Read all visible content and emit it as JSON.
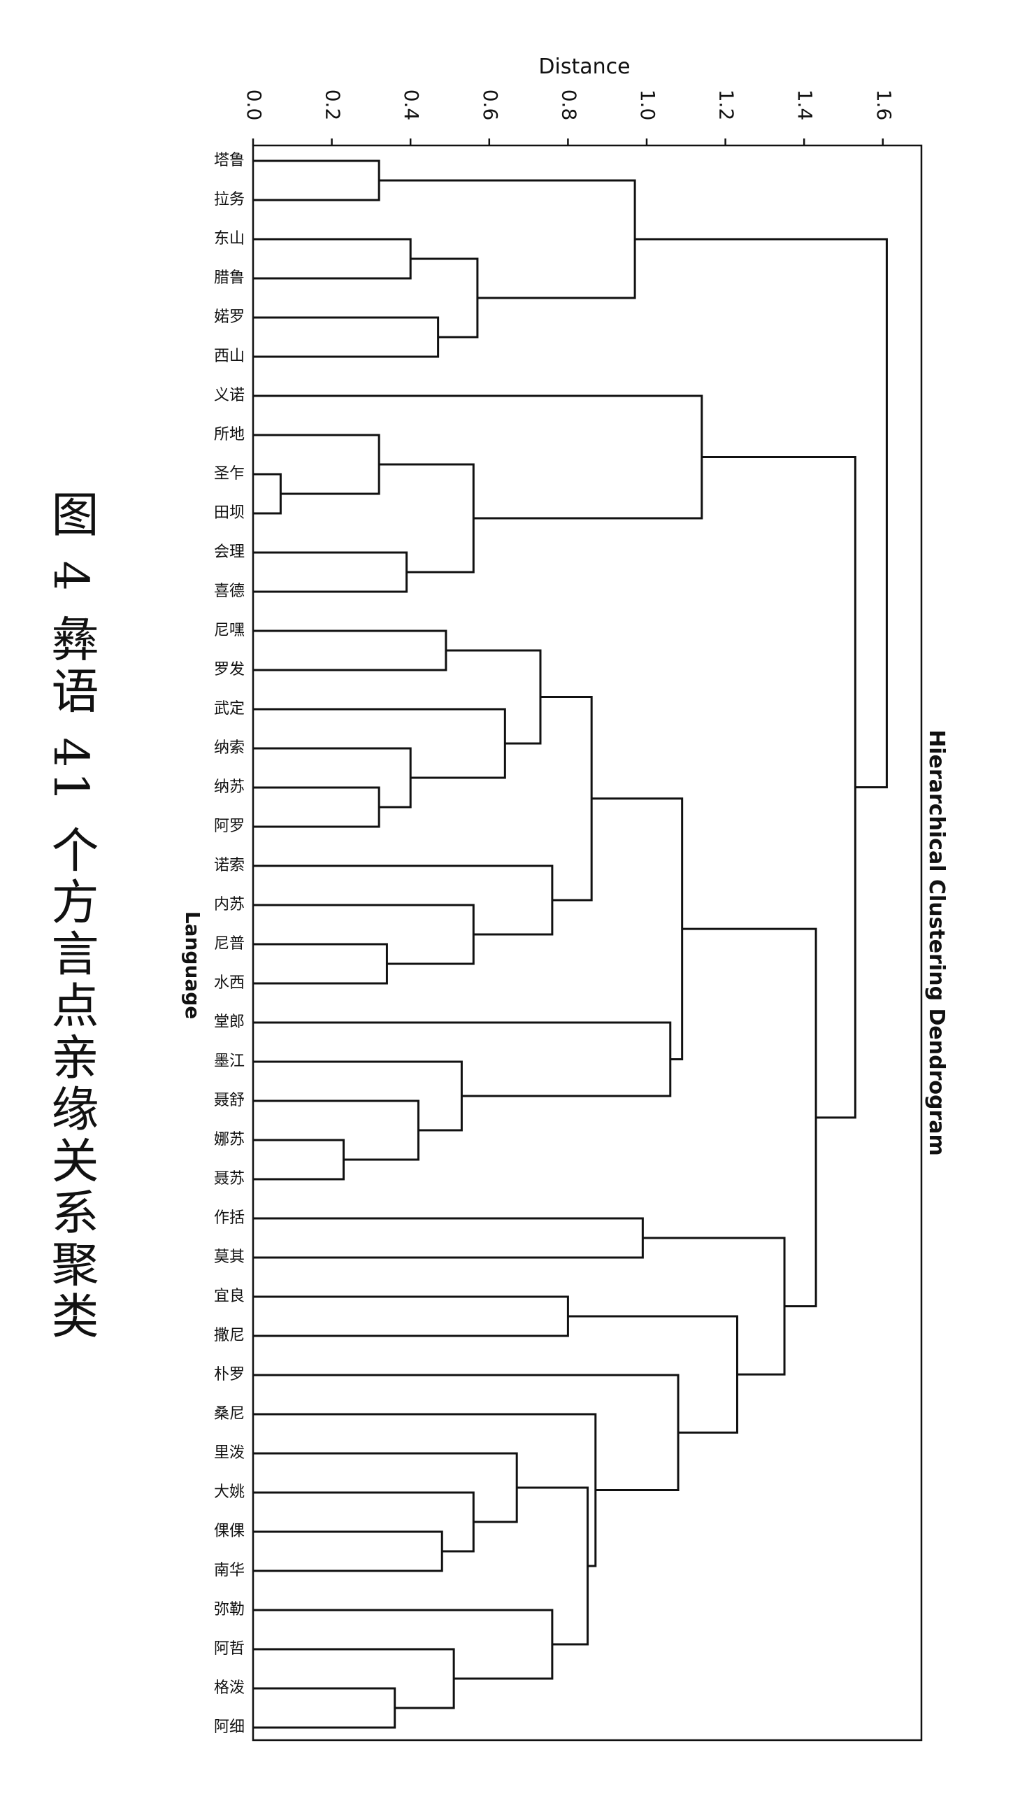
{
  "caption": "图 4   彝语 41 个方言点亲缘关系聚类",
  "chart_data": {
    "type": "dendrogram",
    "title": "Hierarchical Clustering Dendrogram",
    "xlabel": "Distance",
    "ylabel": "Language",
    "xlim": [
      0,
      1.7
    ],
    "xticks": [
      "0.0",
      "0.2",
      "0.4",
      "0.6",
      "0.8",
      "1.0",
      "1.2",
      "1.4",
      "1.6"
    ],
    "leaves": [
      "塔鲁",
      "拉务",
      "东山",
      "腊鲁",
      "婼罗",
      "西山",
      "义诺",
      "所地",
      "圣乍",
      "田坝",
      "会理",
      "喜德",
      "尼嘿",
      "罗发",
      "武定",
      "纳索",
      "纳苏",
      "阿罗",
      "诺索",
      "内苏",
      "尼普",
      "水西",
      "堂郎",
      "墨江",
      "聂舒",
      "娜苏",
      "聂苏",
      "作括",
      "莫其",
      "宜良",
      "撒尼",
      "朴罗",
      "桑尼",
      "里泼",
      "大姚",
      "倮倮",
      "南华",
      "弥勒",
      "阿哲",
      "格泼",
      "阿细"
    ],
    "merges": [
      {
        "a": "L0",
        "b": "L1",
        "h": 0.32
      },
      {
        "a": "L2",
        "b": "L3",
        "h": 0.4
      },
      {
        "a": "L4",
        "b": "L5",
        "h": 0.47
      },
      {
        "a": "C1",
        "b": "C2",
        "h": 0.57
      },
      {
        "a": "C0",
        "b": "C3",
        "h": 0.97
      },
      {
        "a": "L8",
        "b": "L9",
        "h": 0.07
      },
      {
        "a": "L7",
        "b": "C5",
        "h": 0.32
      },
      {
        "a": "L10",
        "b": "L11",
        "h": 0.39
      },
      {
        "a": "C6",
        "b": "C7",
        "h": 0.56
      },
      {
        "a": "L6",
        "b": "C8",
        "h": 1.14
      },
      {
        "a": "L16",
        "b": "L17",
        "h": 0.32
      },
      {
        "a": "L15",
        "b": "C10",
        "h": 0.4
      },
      {
        "a": "L14",
        "b": "C11",
        "h": 0.64
      },
      {
        "a": "L12",
        "b": "L13",
        "h": 0.49
      },
      {
        "a": "C13",
        "b": "C12",
        "h": 0.73
      },
      {
        "a": "L20",
        "b": "L21",
        "h": 0.34
      },
      {
        "a": "L19",
        "b": "C15",
        "h": 0.56
      },
      {
        "a": "L18",
        "b": "C16",
        "h": 0.76
      },
      {
        "a": "C14",
        "b": "C17",
        "h": 0.86
      },
      {
        "a": "L25",
        "b": "L26",
        "h": 0.23
      },
      {
        "a": "L24",
        "b": "C19",
        "h": 0.42
      },
      {
        "a": "L23",
        "b": "C20",
        "h": 0.53
      },
      {
        "a": "L22",
        "b": "C21",
        "h": 1.06
      },
      {
        "a": "C18",
        "b": "C22",
        "h": 1.09
      },
      {
        "a": "L27",
        "b": "L28",
        "h": 0.99
      },
      {
        "a": "L29",
        "b": "L30",
        "h": 0.8
      },
      {
        "a": "L35",
        "b": "L36",
        "h": 0.48
      },
      {
        "a": "L34",
        "b": "C26",
        "h": 0.56
      },
      {
        "a": "L33",
        "b": "C27",
        "h": 0.67
      },
      {
        "a": "L39",
        "b": "L40",
        "h": 0.36
      },
      {
        "a": "L38",
        "b": "C29",
        "h": 0.51
      },
      {
        "a": "L37",
        "b": "C30",
        "h": 0.76
      },
      {
        "a": "C28",
        "b": "C31",
        "h": 0.85
      },
      {
        "a": "L32",
        "b": "C32",
        "h": 0.87
      },
      {
        "a": "L31",
        "b": "C33",
        "h": 1.08
      },
      {
        "a": "C25",
        "b": "C34",
        "h": 1.23
      },
      {
        "a": "C24",
        "b": "C35",
        "h": 1.35
      },
      {
        "a": "C23",
        "b": "C36",
        "h": 1.43
      },
      {
        "a": "C9",
        "b": "C37",
        "h": 1.53
      },
      {
        "a": "C4",
        "b": "C38",
        "h": 1.61
      }
    ]
  }
}
